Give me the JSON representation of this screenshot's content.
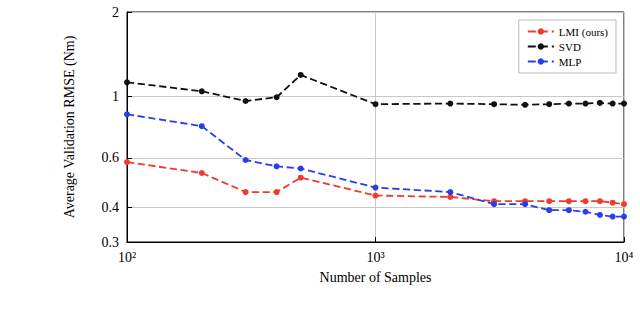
{
  "chart_data": {
    "type": "line",
    "x_label": "Number of Samples",
    "y_label": "Average Validation RMSE (Nm)",
    "x": [
      100,
      200,
      300,
      400,
      500,
      1000,
      2000,
      3000,
      4000,
      5000,
      6000,
      7000,
      8000,
      9000,
      10000
    ],
    "series": [
      {
        "name": "LMI (ours)",
        "color": "#f03a2e",
        "marker": "circle",
        "line_style": "dashed",
        "values": [
          0.58,
          0.53,
          0.453,
          0.453,
          0.51,
          0.44,
          0.435,
          0.42,
          0.42,
          0.42,
          0.42,
          0.42,
          0.42,
          0.415,
          0.41
        ]
      },
      {
        "name": "SVD",
        "color": "#111111",
        "marker": "circle",
        "line_style": "dashed",
        "values": [
          1.12,
          1.04,
          0.96,
          0.99,
          1.19,
          0.935,
          0.94,
          0.935,
          0.93,
          0.935,
          0.94,
          0.94,
          0.945,
          0.94,
          0.94
        ]
      },
      {
        "name": "MLP",
        "color": "#2a3ee8",
        "marker": "circle",
        "line_style": "dashed",
        "values": [
          0.86,
          0.78,
          0.59,
          0.56,
          0.55,
          0.47,
          0.453,
          0.41,
          0.41,
          0.39,
          0.39,
          0.385,
          0.375,
          0.37,
          0.37
        ]
      }
    ],
    "xlim": [
      100,
      10000
    ],
    "xticks": [
      {
        "value": 100,
        "label": "10²"
      },
      {
        "value": 1000,
        "label": "10³"
      },
      {
        "value": 10000,
        "label": "10⁴"
      }
    ],
    "ylim": [
      0.3,
      2
    ],
    "yticks": [
      0.3,
      0.4,
      0.6,
      1,
      2
    ],
    "log": true,
    "grid": true,
    "legend": "upper right"
  }
}
